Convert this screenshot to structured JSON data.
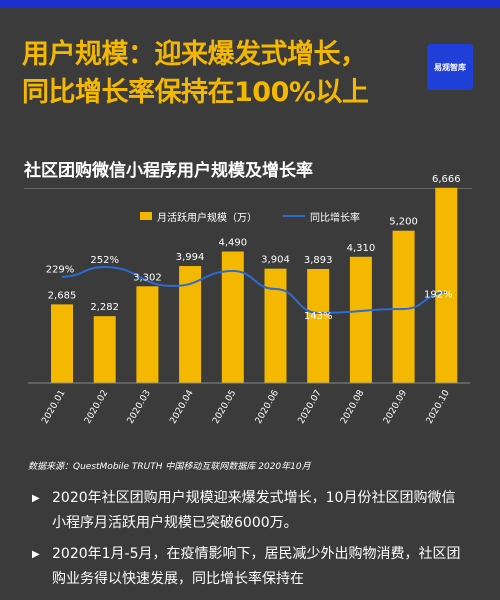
{
  "header": {
    "line1": "用户规模：迎来爆发式增长，",
    "line2": "同比增长率保持在100%以上",
    "logo_text": "易观智库"
  },
  "chart_title": "社区团购微信小程序用户规模及增长率",
  "chart_data": {
    "type": "bar",
    "categories": [
      "2020.01",
      "2020.02",
      "2020.03",
      "2020.04",
      "2020.05",
      "2020.06",
      "2020.07",
      "2020.08",
      "2020.09",
      "2020.10"
    ],
    "series": [
      {
        "name": "月活跃用户规模（万）",
        "type": "bar",
        "values": [
          2685,
          2282,
          3302,
          3994,
          4490,
          3904,
          3893,
          4310,
          5200,
          6666
        ],
        "labels": [
          "2,685",
          "2,282",
          "3,302",
          "3,994",
          "4,490",
          "3,904",
          "3,893",
          "4,310",
          "5,200",
          "6,666"
        ],
        "color": "#f5b800"
      },
      {
        "name": "同比增长率",
        "type": "line",
        "values": [
          229,
          252,
          null,
          null,
          null,
          null,
          143,
          null,
          null,
          192
        ],
        "labels": [
          "229%",
          "252%",
          "",
          "",
          "",
          "",
          "143%",
          "",
          "",
          "192%"
        ],
        "color": "#2b6bd6"
      }
    ],
    "ylim": [
      0,
      7000
    ]
  },
  "source": "数据来源：QuestMobile TRUTH 中国移动互联网数据库 2020年10月",
  "bullets": [
    "2020年社区团购用户规模迎来爆发式增长，10月份社区团购微信小程序月活跃用户规模已突破6000万。",
    "2020年1月-5月，在疫情影响下，居民减少外出购物消费，社区团购业务得以快速发展，同比增长率保持在"
  ],
  "bullet_marker": "▶"
}
